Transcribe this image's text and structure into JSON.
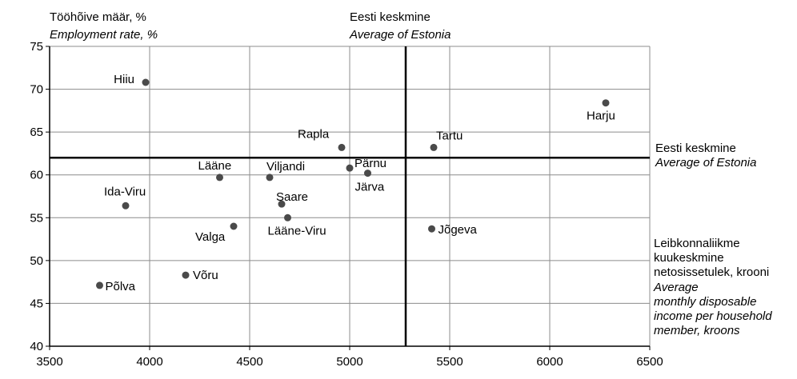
{
  "chart_data": {
    "type": "scatter",
    "title": "",
    "ylabel_et": "Tööhõive määr, %",
    "ylabel_en": "Employment rate, %",
    "xlabel_et_lines": [
      "Leibkonnaliikme",
      "kuukeskmine",
      "netosissetulek, krooni"
    ],
    "xlabel_en_lines": [
      "Average",
      "monthly disposable",
      "income per household",
      "member, kroons"
    ],
    "xlim": [
      3500,
      6500
    ],
    "ylim": [
      40,
      75
    ],
    "x_ticks": [
      3500,
      4000,
      4500,
      5000,
      5500,
      6000,
      6500
    ],
    "y_ticks": [
      40,
      45,
      50,
      55,
      60,
      65,
      70,
      75
    ],
    "grid": true,
    "reference_lines": {
      "x_average": 5280,
      "y_average": 62.0,
      "x_average_label_et": "Eesti keskmine",
      "x_average_label_en": "Average of Estonia",
      "y_average_label_et": "Eesti keskmine",
      "y_average_label_en": "Average of Estonia"
    },
    "points": [
      {
        "label": "Hiiu",
        "x": 3980,
        "y": 70.8
      },
      {
        "label": "Harju",
        "x": 6280,
        "y": 68.4
      },
      {
        "label": "Rapla",
        "x": 4960,
        "y": 63.2
      },
      {
        "label": "Tartu",
        "x": 5420,
        "y": 63.2
      },
      {
        "label": "Pärnu",
        "x": 5000,
        "y": 60.8
      },
      {
        "label": "Järva",
        "x": 5090,
        "y": 60.2
      },
      {
        "label": "Viljandi",
        "x": 4600,
        "y": 59.7
      },
      {
        "label": "Lääne",
        "x": 4350,
        "y": 59.7
      },
      {
        "label": "Saare",
        "x": 4660,
        "y": 56.6
      },
      {
        "label": "Ida-Viru",
        "x": 3880,
        "y": 56.4
      },
      {
        "label": "Lääne-Viru",
        "x": 4690,
        "y": 55.0
      },
      {
        "label": "Valga",
        "x": 4420,
        "y": 54.0
      },
      {
        "label": "Jõgeva",
        "x": 5410,
        "y": 53.7
      },
      {
        "label": "Võru",
        "x": 4180,
        "y": 48.3
      },
      {
        "label": "Põlva",
        "x": 3750,
        "y": 47.1
      }
    ]
  },
  "colors": {
    "point": "#4a4a4a",
    "grid": "#8c8c8c",
    "axis": "#000000",
    "reference": "#000000"
  }
}
